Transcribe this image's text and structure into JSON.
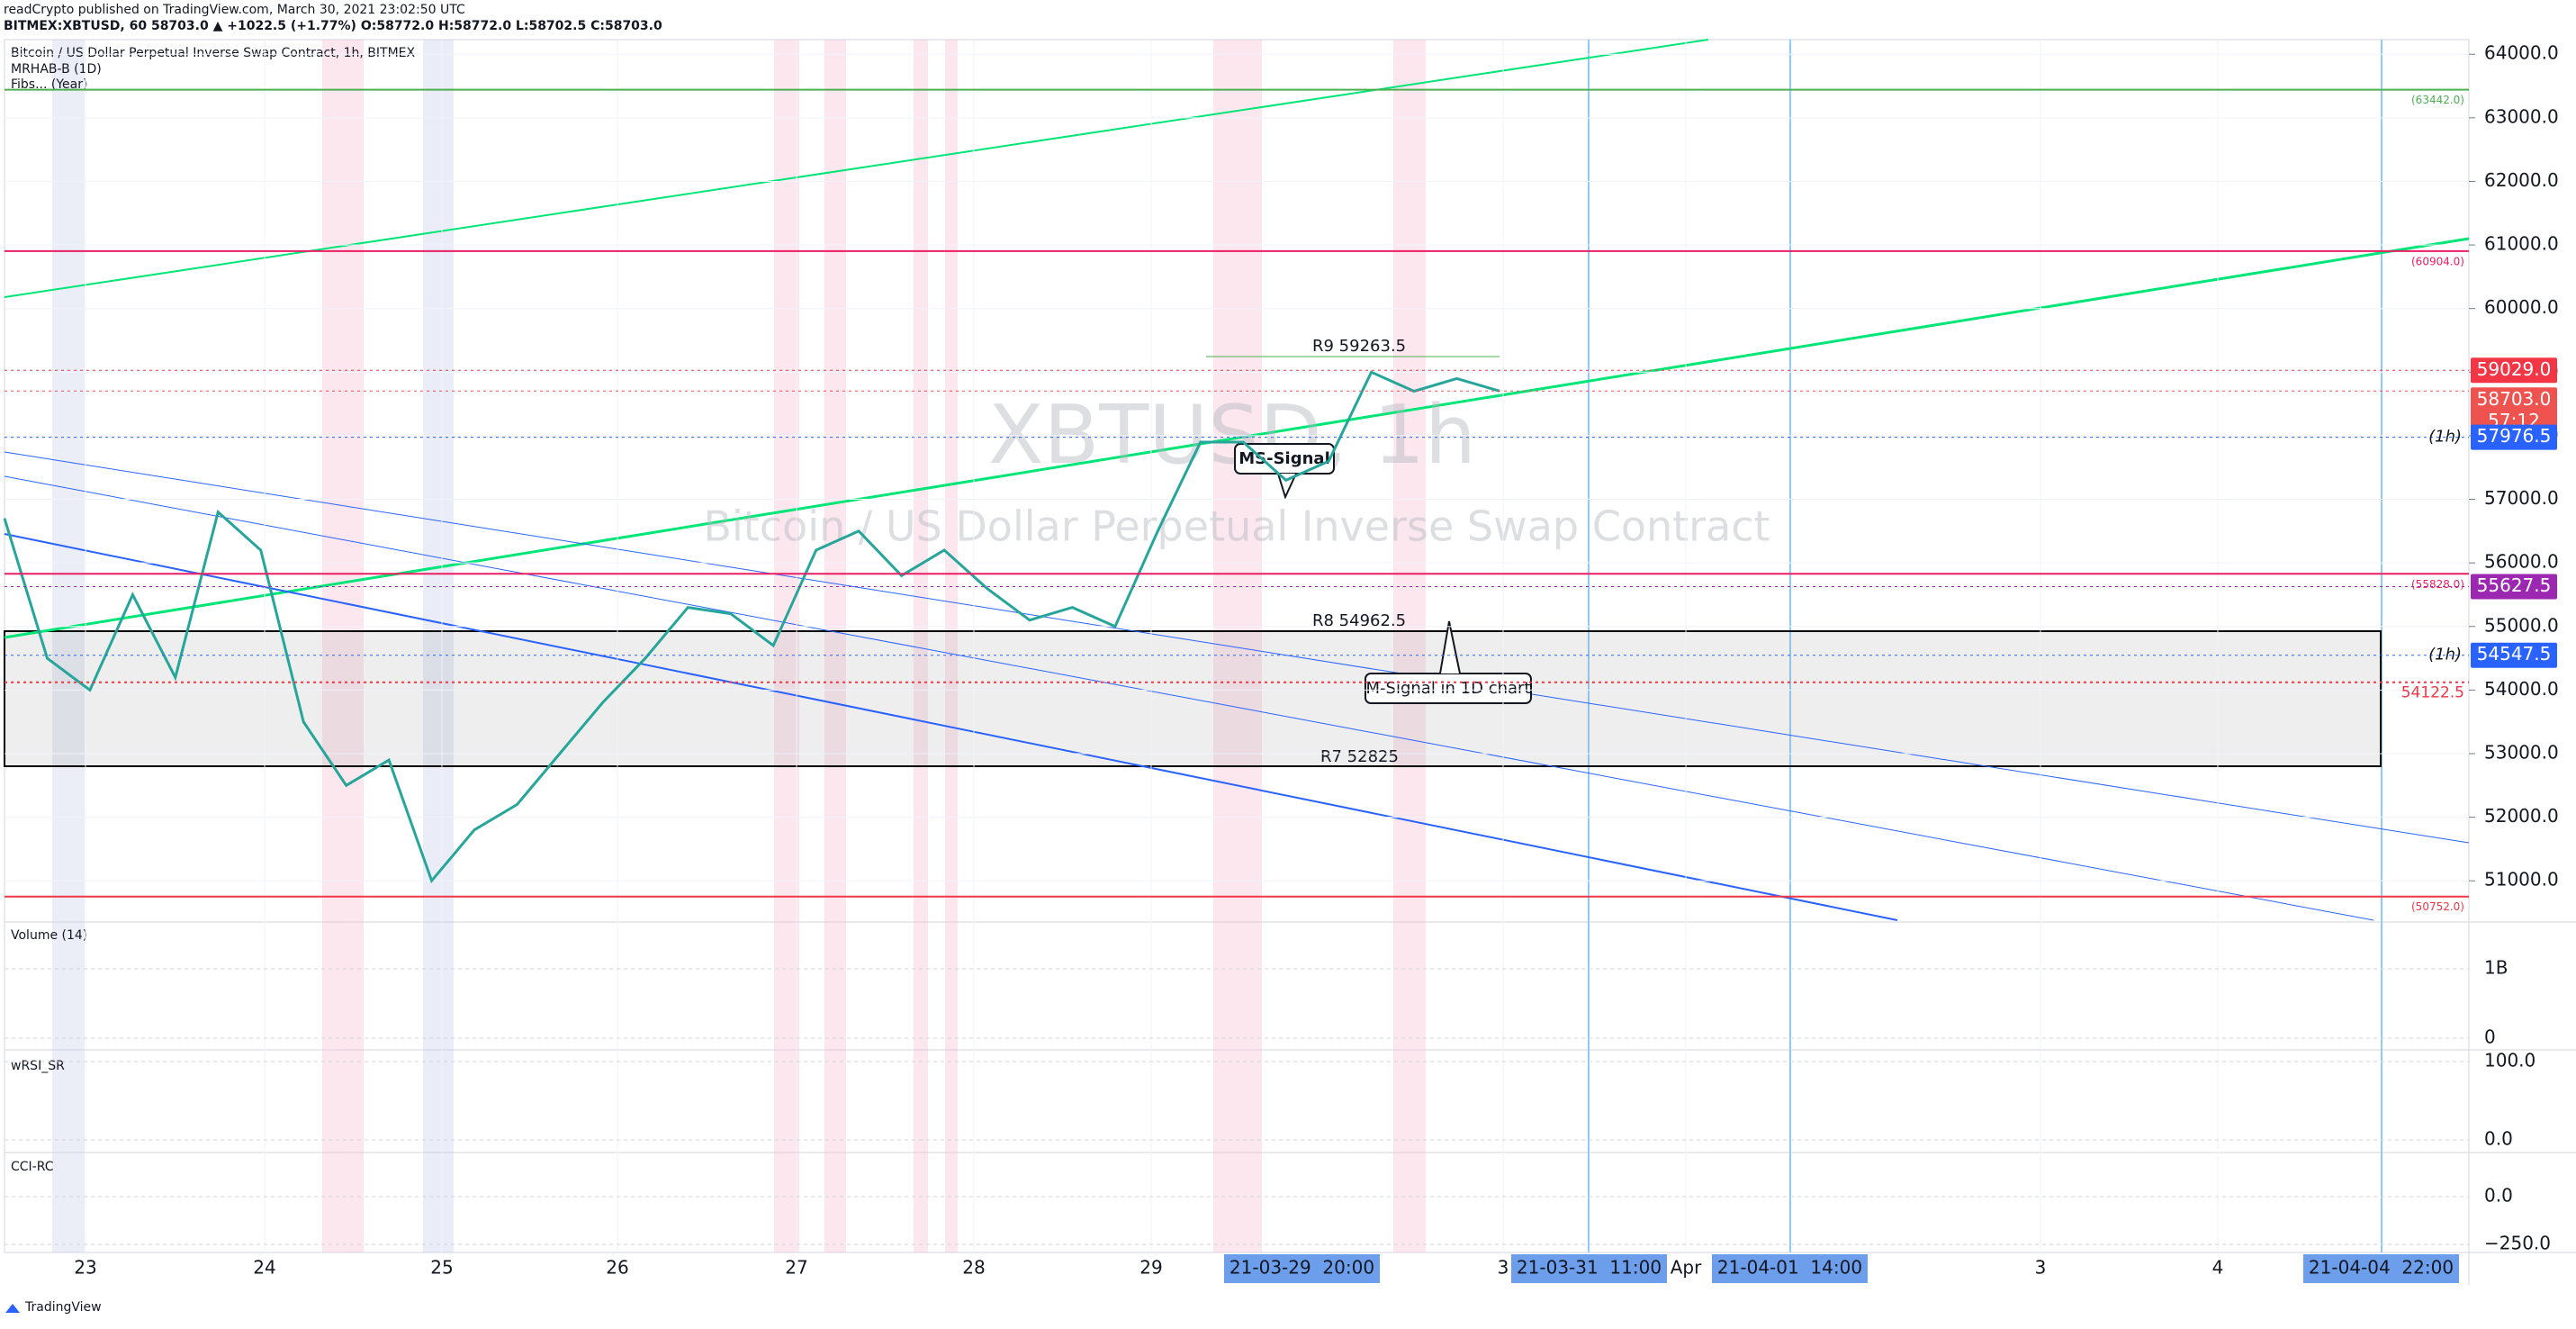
{
  "header": {
    "line1": "readCrypto published on TradingView.com, March 30, 2021 23:02:50 UTC",
    "line2": "BITMEX:XBTUSD, 60  58703.0 ▲ +1022.5 (+1.77%) O:58772.0 H:58772.0 L:58702.5 C:58703.0"
  },
  "legend": [
    "Bitcoin / US Dollar Perpetual Inverse Swap Contract, 1h, BITMEX",
    "MRHAB-B (1D)",
    "Fibs... (Year)"
  ],
  "watermark": {
    "symbol": "XBTUSD, 1h",
    "description": "Bitcoin / US Dollar Perpetual Inverse Swap Contract"
  },
  "price_pane": {
    "ylim": [
      50380,
      64230
    ],
    "yticks": [
      {
        "value": 51000,
        "label": "51000.0"
      },
      {
        "value": 52000,
        "label": "52000.0"
      },
      {
        "value": 53000,
        "label": "53000.0"
      },
      {
        "value": 54000,
        "label": "54000.0"
      },
      {
        "value": 55000,
        "label": "55000.0"
      },
      {
        "value": 56000,
        "label": "56000.0"
      },
      {
        "value": 57000,
        "label": "57000.0"
      },
      {
        "value": 58000,
        "label": "58000.0"
      },
      {
        "value": 59000,
        "label": "59000.0"
      },
      {
        "value": 60000,
        "label": "60000.0"
      },
      {
        "value": 61000,
        "label": "61000.0"
      },
      {
        "value": 62000,
        "label": "62000.0"
      },
      {
        "value": 63000,
        "label": "63000.0"
      },
      {
        "value": 64000,
        "label": "64000.0"
      }
    ],
    "closes": [
      56700,
      54500,
      54000,
      55500,
      54200,
      56800,
      56200,
      53500,
      52500,
      52900,
      51000,
      51800,
      52200,
      53000,
      53800,
      54500,
      55300,
      55200,
      54700,
      56200,
      56500,
      55800,
      56200,
      55600,
      55100,
      55300,
      55000,
      56500,
      57900,
      57900,
      57300,
      57600,
      59000,
      58700,
      58900,
      58703
    ],
    "price_labels": [
      {
        "value": 59029,
        "label": "59029.0",
        "color": "#f23645"
      },
      {
        "value": 58703,
        "label": "58703.0",
        "sub": "57:12",
        "color": "#ef5350"
      },
      {
        "value": 57976.5,
        "label": "57976.5",
        "tag": "(1h)",
        "color": "#2962ff"
      },
      {
        "value": 55627.5,
        "label": "55627.5",
        "color": "#9c27b0"
      },
      {
        "value": 54547.5,
        "label": "54547.5",
        "tag": "(1h)",
        "color": "#2962ff"
      }
    ],
    "text_levels": [
      {
        "value": 63442,
        "label": "(63442.0)",
        "color": "#4caf50"
      },
      {
        "value": 60904,
        "label": "(60904.0)",
        "color": "#e91e63"
      },
      {
        "value": 55828,
        "label": "(55828.0)",
        "color": "#e91e63"
      },
      {
        "value": 54122.5,
        "label": "54122.5",
        "color": "#f23645"
      },
      {
        "value": 50752,
        "label": "(50752.0)",
        "color": "#f23645"
      }
    ]
  },
  "annotations": {
    "r9": "R9 59263.5",
    "r8": "R8 54962.5",
    "r7": "R7 52825",
    "ms_signal": "MS-Signal",
    "m_signal": "M-Signal in 1D chart"
  },
  "panes": [
    {
      "name": "Volume (14)",
      "ylim": [
        -143000000,
        1650000000
      ],
      "yticks": [
        {
          "value": 1000000000,
          "label": "1B"
        },
        0
      ]
    },
    {
      "name": "wRSI_SR",
      "ylim": [
        -13.8,
        112.6
      ],
      "yticks": [
        {
          "value": 100,
          "label": "100.0"
        },
        {
          "value": 0,
          "label": "0.0"
        }
      ]
    },
    {
      "name": "CCI-RC",
      "ylim": [
        -292,
        226
      ],
      "yticks": [
        {
          "value": 0,
          "label": "0.0"
        },
        {
          "value": -250,
          "label": "−250.0"
        }
      ]
    }
  ],
  "time_axis": {
    "labels": [
      "23",
      "24",
      "25",
      "26",
      "27",
      "28",
      "29",
      "3",
      "Apr",
      "3",
      "4"
    ],
    "highlights": [
      "21-03-29  20:00",
      "21-03-31  11:00",
      "21-04-01  14:00",
      "21-04-04  22:00"
    ]
  },
  "footer": "TradingView"
}
